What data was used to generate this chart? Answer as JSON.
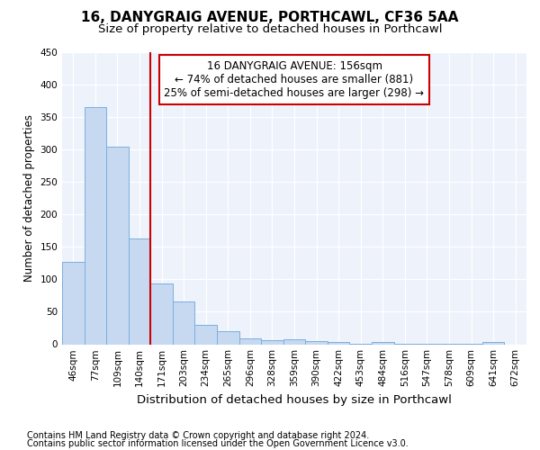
{
  "title": "16, DANYGRAIG AVENUE, PORTHCAWL, CF36 5AA",
  "subtitle": "Size of property relative to detached houses in Porthcawl",
  "xlabel": "Distribution of detached houses by size in Porthcawl",
  "ylabel": "Number of detached properties",
  "bar_labels": [
    "46sqm",
    "77sqm",
    "109sqm",
    "140sqm",
    "171sqm",
    "203sqm",
    "234sqm",
    "265sqm",
    "296sqm",
    "328sqm",
    "359sqm",
    "390sqm",
    "422sqm",
    "453sqm",
    "484sqm",
    "516sqm",
    "547sqm",
    "578sqm",
    "609sqm",
    "641sqm",
    "672sqm"
  ],
  "bar_values": [
    127,
    365,
    304,
    163,
    93,
    66,
    30,
    20,
    9,
    6,
    8,
    5,
    3,
    1,
    4,
    1,
    1,
    1,
    1,
    4,
    0
  ],
  "bar_color": "#c6d9f0",
  "bar_edge_color": "#7aafdf",
  "vline_x": 3.5,
  "vline_color": "#cc0000",
  "annotation_line1": "16 DANYGRAIG AVENUE: 156sqm",
  "annotation_line2": "← 74% of detached houses are smaller (881)",
  "annotation_line3": "25% of semi-detached houses are larger (298) →",
  "annotation_box_color": "#ffffff",
  "annotation_box_edge": "#cc0000",
  "ylim": [
    0,
    450
  ],
  "yticks": [
    0,
    50,
    100,
    150,
    200,
    250,
    300,
    350,
    400,
    450
  ],
  "footnote1": "Contains HM Land Registry data © Crown copyright and database right 2024.",
  "footnote2": "Contains public sector information licensed under the Open Government Licence v3.0.",
  "plot_bg_color": "#edf2fb",
  "fig_bg_color": "#ffffff",
  "title_fontsize": 11,
  "subtitle_fontsize": 9.5,
  "xlabel_fontsize": 9.5,
  "ylabel_fontsize": 8.5,
  "tick_fontsize": 7.5,
  "annot_fontsize": 8.5,
  "footnote_fontsize": 7
}
